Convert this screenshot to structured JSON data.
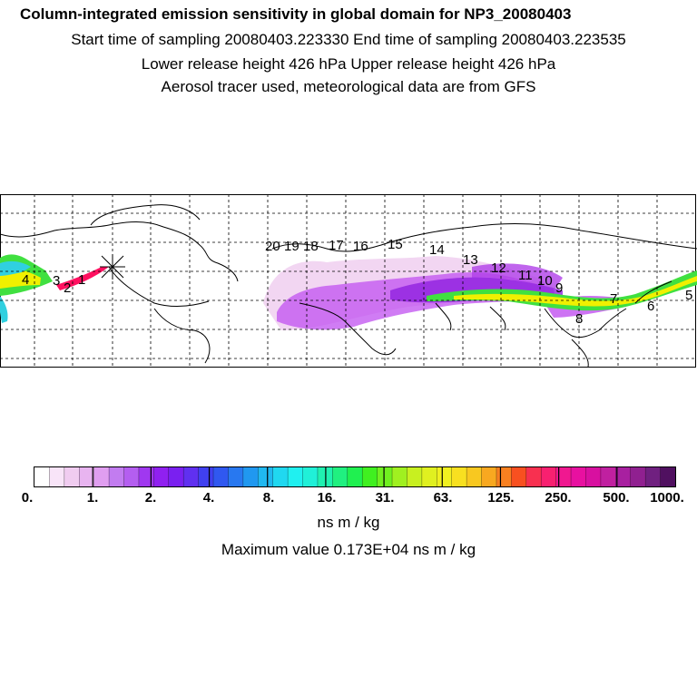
{
  "header": {
    "title": "Column-integrated emission sensitivity in global domain for NP3_20080403",
    "line1": "Start time of sampling 20080403.223330     End time of sampling 20080403.223535",
    "line2": "Lower release height  426 hPa        Upper release height  426 hPa",
    "line3": "Aerosol tracer used, meteorological data are from GFS"
  },
  "map": {
    "track_labels": [
      "1",
      "2",
      "3",
      "4",
      "5",
      "6",
      "7",
      "8",
      "9",
      "10",
      "11",
      "12",
      "13",
      "14",
      "15",
      "16",
      "17",
      "18",
      "19",
      "20"
    ],
    "colors": {
      "light_pink": "#f2d6f2",
      "violet": "#c050f0",
      "purple": "#9020e0",
      "green": "#40e040",
      "yellow": "#f0f000",
      "cyan": "#30d0e0",
      "red": "#ff1060"
    }
  },
  "colorbar": {
    "tick_labels": [
      "0.",
      "1.",
      "2.",
      "4.",
      "8.",
      "16.",
      "31.",
      "63.",
      "125.",
      "250.",
      "500.",
      "1000."
    ],
    "colors": [
      "#ffffff",
      "#f8e4f8",
      "#f0ccf0",
      "#e8b4f0",
      "#e09ef0",
      "#c27cf0",
      "#b45ef0",
      "#a038f0",
      "#9020f0",
      "#7a20f0",
      "#6030f0",
      "#4040f0",
      "#3058f0",
      "#2878f0",
      "#2098f0",
      "#20b8f0",
      "#20d8f0",
      "#20f0f0",
      "#20f0d8",
      "#20f0b0",
      "#20f080",
      "#20f050",
      "#40f020",
      "#70f020",
      "#a0f020",
      "#c8f020",
      "#e0f020",
      "#f0f020",
      "#f8e020",
      "#f8c820",
      "#f8a820",
      "#f88020",
      "#f85020",
      "#f83050",
      "#f82070",
      "#f01890",
      "#e810a0",
      "#d810a0",
      "#c020a0",
      "#a820a0",
      "#902090",
      "#702080",
      "#501060"
    ],
    "units": "ns m / kg",
    "maximum": "Maximum value  0.173E+04 ns m / kg"
  }
}
